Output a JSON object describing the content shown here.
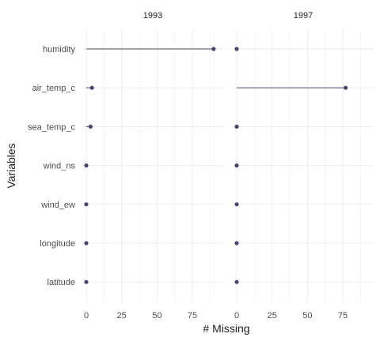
{
  "chart_data": {
    "type": "lollipop",
    "xlabel": "# Missing",
    "ylabel": "Variables",
    "variables": [
      "humidity",
      "air_temp_c",
      "sea_temp_c",
      "wind_ns",
      "wind_ew",
      "longitude",
      "latitude"
    ],
    "x_ticks": [
      0,
      25,
      50,
      75
    ],
    "xlim": [
      0,
      94
    ],
    "grid": true,
    "colors": {
      "point": "#4b4570",
      "segment": "#4b4570",
      "grid": "#ebebeb",
      "text": "#222222",
      "axis_text": "#4d4d4d"
    },
    "panels": [
      {
        "label": "1993",
        "values": [
          90,
          4,
          3,
          0,
          0,
          0,
          0
        ]
      },
      {
        "label": "1997",
        "values": [
          0,
          77,
          0,
          0,
          0,
          0,
          0
        ]
      }
    ]
  }
}
